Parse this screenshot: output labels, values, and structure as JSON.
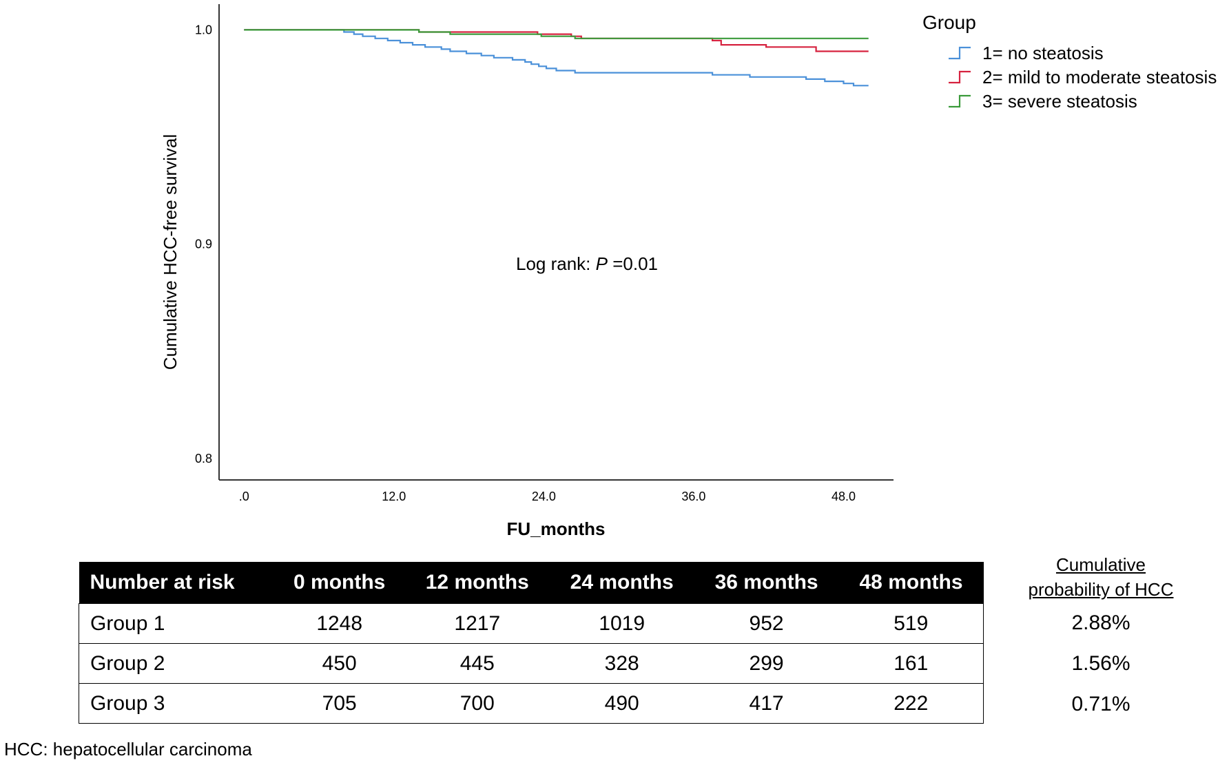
{
  "chart_data": {
    "type": "line",
    "subtype": "kaplan-meier step",
    "xlabel": "FU_months",
    "ylabel": "Cumulative HCC-free survival",
    "xlim": [
      -2,
      52
    ],
    "ylim": [
      0.79,
      1.012
    ],
    "x_ticks": [
      0,
      12,
      24,
      36,
      48
    ],
    "x_tick_labels": [
      ".0",
      "12.0",
      "24.0",
      "36.0",
      "48.0"
    ],
    "y_ticks": [
      0.8,
      0.9,
      1.0
    ],
    "y_tick_labels": [
      "0.8",
      "0.9",
      "1.0"
    ],
    "grid": false,
    "legend_title": "Group",
    "legend_position": "top-right",
    "annotation": {
      "prefix": "Log rank: ",
      "italic": "P",
      "suffix": " =0.01"
    },
    "series": [
      {
        "name": "1= no steatosis",
        "color": "#4a90d9",
        "points": [
          [
            0,
            1.0
          ],
          [
            7.5,
            1.0
          ],
          [
            8,
            0.999
          ],
          [
            8.8,
            0.998
          ],
          [
            9.5,
            0.997
          ],
          [
            10.5,
            0.996
          ],
          [
            11.5,
            0.995
          ],
          [
            12.5,
            0.994
          ],
          [
            13.5,
            0.993
          ],
          [
            14.5,
            0.992
          ],
          [
            15.8,
            0.991
          ],
          [
            16.5,
            0.99
          ],
          [
            17.8,
            0.989
          ],
          [
            19,
            0.988
          ],
          [
            20,
            0.987
          ],
          [
            21.5,
            0.986
          ],
          [
            22.5,
            0.985
          ],
          [
            23,
            0.984
          ],
          [
            23.6,
            0.983
          ],
          [
            24.2,
            0.982
          ],
          [
            25,
            0.981
          ],
          [
            26.5,
            0.98
          ],
          [
            28,
            0.98
          ],
          [
            37.5,
            0.979
          ],
          [
            40.5,
            0.978
          ],
          [
            45,
            0.977
          ],
          [
            46.5,
            0.976
          ],
          [
            48,
            0.975
          ],
          [
            48.8,
            0.974
          ],
          [
            50,
            0.974
          ]
        ]
      },
      {
        "name": "2= mild to moderate steatosis",
        "color": "#d6223f",
        "points": [
          [
            0,
            1.0
          ],
          [
            13.5,
            1.0
          ],
          [
            14,
            0.999
          ],
          [
            23.5,
            0.998
          ],
          [
            26.2,
            0.997
          ],
          [
            27,
            0.996
          ],
          [
            37.5,
            0.995
          ],
          [
            38.2,
            0.993
          ],
          [
            41.8,
            0.992
          ],
          [
            45.8,
            0.99
          ],
          [
            50,
            0.99
          ]
        ]
      },
      {
        "name": "3= severe steatosis",
        "color": "#3a9a3a",
        "points": [
          [
            0,
            1.0
          ],
          [
            13.5,
            1.0
          ],
          [
            14,
            0.999
          ],
          [
            16.5,
            0.998
          ],
          [
            23.8,
            0.997
          ],
          [
            26.5,
            0.996
          ],
          [
            27,
            0.996
          ],
          [
            50,
            0.996
          ]
        ]
      }
    ]
  },
  "risk_table": {
    "headers": [
      "Number at risk",
      "0 months",
      "12 months",
      "24 months",
      "36 months",
      "48 months"
    ],
    "rows": [
      [
        "Group 1",
        "1248",
        "1217",
        "1019",
        "952",
        "519"
      ],
      [
        "Group 2",
        "450",
        "445",
        "328",
        "299",
        "161"
      ],
      [
        "Group 3",
        "705",
        "700",
        "490",
        "417",
        "222"
      ]
    ]
  },
  "cumulative_probability": {
    "heading_line1": "Cumulative",
    "heading_line2": "probability of HCC",
    "values": [
      "2.88%",
      "1.56%",
      "0.71%"
    ]
  },
  "footnote": "HCC: hepatocellular carcinoma"
}
